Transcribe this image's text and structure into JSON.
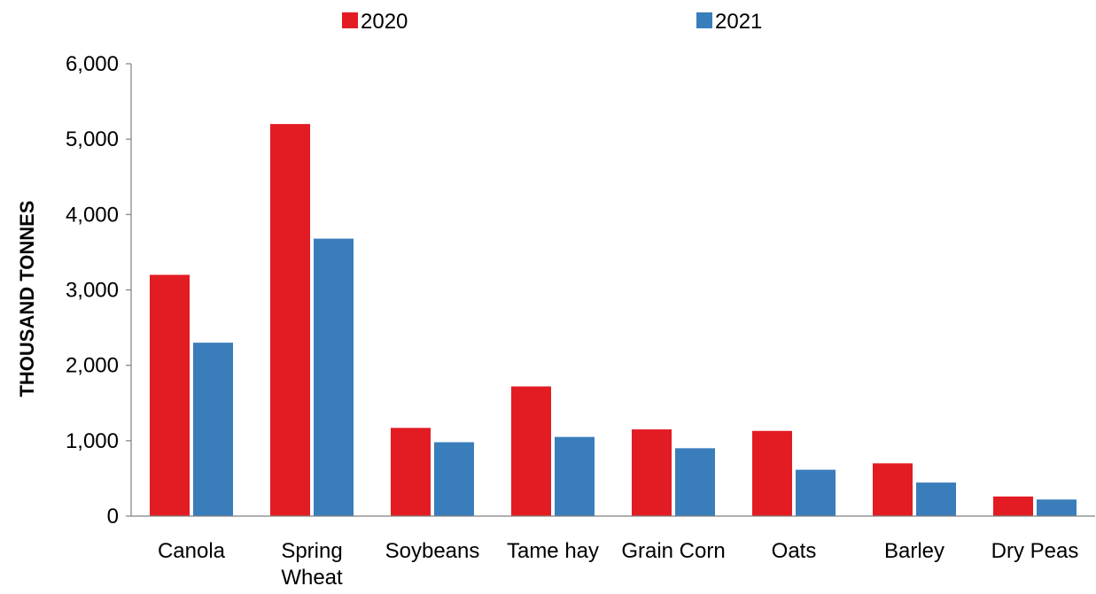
{
  "chart_data": {
    "type": "bar",
    "categories": [
      "Canola",
      "Spring Wheat",
      "Soybeans",
      "Tame hay",
      "Grain Corn",
      "Oats",
      "Barley",
      "Dry Peas"
    ],
    "category_lines": [
      [
        "Canola"
      ],
      [
        "Spring",
        "Wheat"
      ],
      [
        "Soybeans"
      ],
      [
        "Tame hay"
      ],
      [
        "Grain Corn"
      ],
      [
        "Oats"
      ],
      [
        "Barley"
      ],
      [
        "Dry Peas"
      ]
    ],
    "series": [
      {
        "name": "2020",
        "color": "#e31b23",
        "values": [
          3200,
          5200,
          1170,
          1720,
          1150,
          1130,
          700,
          260
        ]
      },
      {
        "name": "2021",
        "color": "#3a7dbb",
        "values": [
          2300,
          3680,
          980,
          1050,
          900,
          615,
          445,
          220
        ]
      }
    ],
    "xlabel": "",
    "ylabel": "THOUSAND TONNES",
    "ylim": [
      0,
      6000
    ],
    "yticks": [
      0,
      1000,
      2000,
      3000,
      4000,
      5000,
      6000
    ],
    "ytick_labels": [
      "0",
      "1,000",
      "2,000",
      "3,000",
      "4,000",
      "5,000",
      "6,000"
    ],
    "grid": false,
    "legend_position": "top"
  }
}
